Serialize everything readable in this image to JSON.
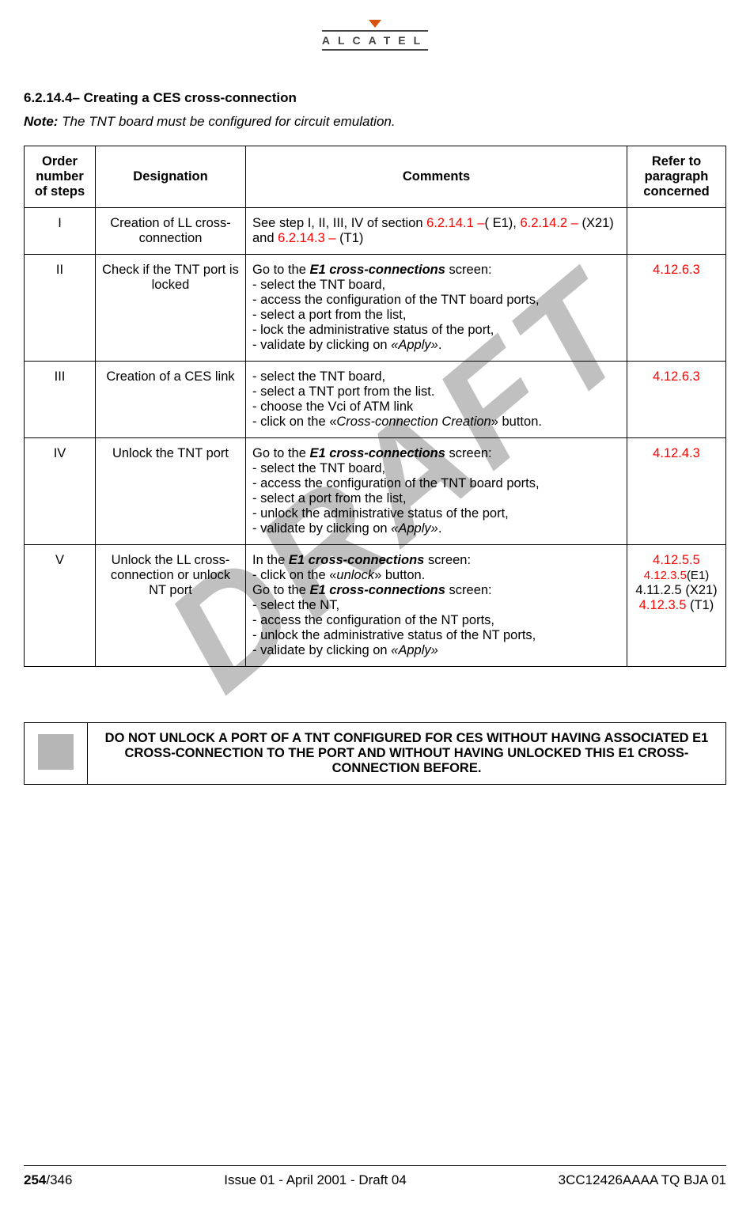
{
  "logo": {
    "text": "ALCATEL"
  },
  "watermark": "DRAFT",
  "heading": {
    "number": "6.2.14.4–",
    "title": " Creating a CES cross-connection"
  },
  "note": {
    "label": "Note:",
    "text": " The TNT board must be configured for circuit emulation."
  },
  "table": {
    "headers": {
      "order": "Order number of steps",
      "designation": "Designation",
      "comments": "Comments",
      "refer": "Refer to paragraph concerned"
    },
    "rows": {
      "r1": {
        "order": "I",
        "designation": "Creation of LL cross-connection",
        "c_pre": "See step I, II, III, IV of section ",
        "c_l1": "6.2.14.1 –",
        "c_m1": "( E1), ",
        "c_l2": "6.2.14.2 –",
        "c_m2": " (X21) and ",
        "c_l3": "6.2.14.3 –",
        "c_m3": " (T1)",
        "ref": ""
      },
      "r2": {
        "order": "II",
        "designation": "Check if the TNT port is locked",
        "c_pre": "Go to the ",
        "c_bold": "E1 cross-connections",
        "c_post": " screen:",
        "b1": "- select the TNT board,",
        "b2": "- access the configuration of the TNT board ports,",
        "b3": "- select a port from the list,",
        "b4": "- lock the administrative status of the port,",
        "b5a": "- validate by clicking on ",
        "b5b": "«Apply»",
        "b5c": ".",
        "ref": "4.12.6.3"
      },
      "r3": {
        "order": "III",
        "designation": "Creation of a CES link",
        "b1": "- select the TNT board,",
        "b2": "- select a TNT port from the list.",
        "b3": "- choose the Vci of ATM link",
        "b4a": "- click on the «",
        "b4b": "Cross-connection Creation",
        "b4c": "» button.",
        "ref": "4.12.6.3"
      },
      "r4": {
        "order": "IV",
        "designation": "Unlock the TNT port",
        "c_pre": "Go to the ",
        "c_bold": "E1 cross-connections",
        "c_post": " screen:",
        "b1": "- select the TNT board,",
        "b2": "- access the configuration of the TNT board ports,",
        "b3": "- select a port from the list,",
        "b4": "- unlock the administrative status of the port,",
        "b5a": "- validate by clicking on ",
        "b5b": "«Apply»",
        "b5c": ".",
        "ref": "4.12.4.3"
      },
      "r5": {
        "order": "V",
        "designation": "Unlock the LL cross-connection or unlock NT port",
        "l1a": "In the ",
        "l1b": "E1 cross-connections",
        "l1c": " screen:",
        "l2a": "- click on the «",
        "l2b": "unlock",
        "l2c": "» button.",
        "l3a": "Go to the ",
        "l3b": "E1 cross-connections",
        "l3c": " screen:",
        "b1": "- select the NT,",
        "b2": "- access the configuration of the NT ports,",
        "b3": "- unlock the administrative status of the NT ports,",
        "b4a": "- validate by clicking on ",
        "b4b": "«Apply»",
        "ref1": "4.12.5.5",
        "ref2a": "4.12.3.5",
        "ref2b": "(E1)",
        "ref3": "4.11.2.5 (X21)",
        "ref4a": "4.12.3.5",
        "ref4b": " (T1)"
      }
    }
  },
  "warning": "DO NOT UNLOCK A PORT OF A TNT CONFIGURED FOR CES WITHOUT HAVING ASSOCIATED E1 CROSS-CONNECTION TO THE PORT AND WITHOUT HAVING UNLOCKED THIS E1 CROSS-CONNECTION BEFORE.",
  "footer": {
    "page_current": "254",
    "page_total": "/346",
    "center": "Issue 01 - April 2001 - Draft 04",
    "right": "3CC12426AAAA TQ BJA 01"
  }
}
